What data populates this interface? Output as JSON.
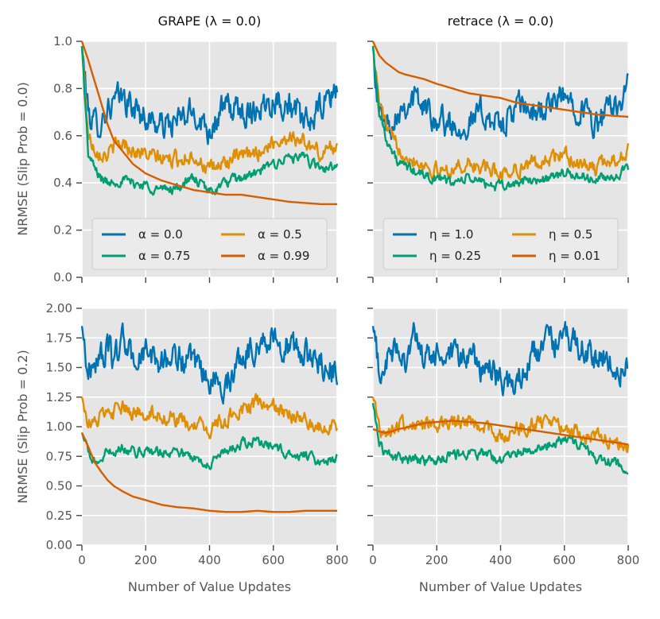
{
  "figure": {
    "row_labels": [
      "NRMSE (Slip Prob = 0.0)",
      "NRMSE (Slip Prob = 0.2)"
    ],
    "xlabel": "Number of Value Updates"
  },
  "colors": {
    "blue": "#0173b2",
    "orange": "#de8f05",
    "green": "#029e73",
    "vermillion": "#d55e00"
  },
  "chart_data": [
    {
      "type": "line",
      "title": "GRAPE (λ = 0.0)",
      "xlabel": "",
      "ylabel": "NRMSE (Slip Prob = 0.0)",
      "xlim": [
        0,
        800
      ],
      "ylim": [
        0,
        1
      ],
      "xticks": [
        0,
        200,
        400,
        600,
        800
      ],
      "yticks": [
        0.0,
        0.2,
        0.4,
        0.6,
        0.8,
        1.0
      ],
      "show_xtick_labels": false,
      "show_ytick_labels": true,
      "grid": true,
      "legend": {
        "position": "lower-center",
        "ncol": 2
      },
      "x": [
        0,
        20,
        40,
        60,
        80,
        100,
        130,
        160,
        200,
        250,
        300,
        350,
        400,
        450,
        500,
        550,
        600,
        650,
        700,
        750,
        800
      ],
      "series": [
        {
          "name": "α = 0.0",
          "color": "blue",
          "values": [
            0.98,
            0.7,
            0.65,
            0.66,
            0.72,
            0.74,
            0.76,
            0.72,
            0.68,
            0.64,
            0.66,
            0.7,
            0.63,
            0.72,
            0.7,
            0.72,
            0.76,
            0.73,
            0.64,
            0.72,
            0.8
          ]
        },
        {
          "name": "α = 0.5",
          "color": "orange",
          "values": [
            0.98,
            0.6,
            0.55,
            0.53,
            0.52,
            0.55,
            0.57,
            0.54,
            0.52,
            0.5,
            0.5,
            0.52,
            0.45,
            0.49,
            0.51,
            0.53,
            0.57,
            0.6,
            0.57,
            0.52,
            0.57
          ]
        },
        {
          "name": "α = 0.75",
          "color": "green",
          "values": [
            0.98,
            0.52,
            0.46,
            0.42,
            0.4,
            0.41,
            0.41,
            0.4,
            0.39,
            0.37,
            0.38,
            0.42,
            0.36,
            0.4,
            0.42,
            0.44,
            0.48,
            0.51,
            0.5,
            0.46,
            0.47
          ]
        },
        {
          "name": "α = 0.99",
          "color": "vermillion",
          "values": [
            1.0,
            0.92,
            0.83,
            0.74,
            0.65,
            0.58,
            0.53,
            0.48,
            0.44,
            0.41,
            0.39,
            0.37,
            0.36,
            0.35,
            0.35,
            0.34,
            0.33,
            0.32,
            0.315,
            0.31,
            0.31
          ]
        }
      ]
    },
    {
      "type": "line",
      "title": "retrace (λ = 0.0)",
      "xlabel": "",
      "ylabel": "",
      "xlim": [
        0,
        800
      ],
      "ylim": [
        0,
        1
      ],
      "xticks": [
        0,
        200,
        400,
        600,
        800
      ],
      "yticks": [
        0.0,
        0.2,
        0.4,
        0.6,
        0.8,
        1.0
      ],
      "show_xtick_labels": false,
      "show_ytick_labels": false,
      "grid": true,
      "legend": {
        "position": "lower-center",
        "ncol": 2
      },
      "x": [
        0,
        20,
        40,
        60,
        80,
        100,
        130,
        160,
        200,
        250,
        300,
        350,
        400,
        450,
        500,
        550,
        600,
        650,
        700,
        750,
        800
      ],
      "series": [
        {
          "name": "η = 1.0",
          "color": "blue",
          "values": [
            0.98,
            0.7,
            0.65,
            0.66,
            0.72,
            0.74,
            0.76,
            0.72,
            0.68,
            0.64,
            0.66,
            0.7,
            0.63,
            0.72,
            0.7,
            0.72,
            0.76,
            0.73,
            0.64,
            0.72,
            0.8
          ]
        },
        {
          "name": "η = 0.5",
          "color": "orange",
          "values": [
            0.98,
            0.74,
            0.65,
            0.58,
            0.55,
            0.53,
            0.5,
            0.48,
            0.45,
            0.46,
            0.48,
            0.46,
            0.44,
            0.46,
            0.48,
            0.5,
            0.52,
            0.48,
            0.46,
            0.5,
            0.53
          ]
        },
        {
          "name": "η = 0.25",
          "color": "green",
          "values": [
            0.98,
            0.7,
            0.6,
            0.53,
            0.48,
            0.47,
            0.45,
            0.43,
            0.42,
            0.4,
            0.42,
            0.4,
            0.38,
            0.4,
            0.41,
            0.42,
            0.44,
            0.43,
            0.41,
            0.43,
            0.45
          ]
        },
        {
          "name": "η = 0.01",
          "color": "vermillion",
          "values": [
            1.0,
            0.94,
            0.91,
            0.89,
            0.87,
            0.86,
            0.85,
            0.84,
            0.82,
            0.8,
            0.78,
            0.77,
            0.76,
            0.74,
            0.73,
            0.72,
            0.71,
            0.7,
            0.69,
            0.685,
            0.68
          ]
        }
      ]
    },
    {
      "type": "line",
      "title": "",
      "xlabel": "Number of Value Updates",
      "ylabel": "NRMSE (Slip Prob = 0.2)",
      "xlim": [
        0,
        800
      ],
      "ylim": [
        0,
        2
      ],
      "xticks": [
        0,
        200,
        400,
        600,
        800
      ],
      "yticks": [
        0.0,
        0.25,
        0.5,
        0.75,
        1.0,
        1.25,
        1.5,
        1.75,
        2.0
      ],
      "show_xtick_labels": true,
      "show_ytick_labels": true,
      "grid": true,
      "legend": null,
      "x": [
        0,
        20,
        40,
        60,
        80,
        100,
        130,
        160,
        200,
        250,
        300,
        350,
        400,
        450,
        500,
        550,
        600,
        650,
        700,
        750,
        800
      ],
      "series": [
        {
          "name": "α = 0.0",
          "color": "blue",
          "values": [
            1.85,
            1.45,
            1.55,
            1.6,
            1.65,
            1.58,
            1.75,
            1.55,
            1.62,
            1.55,
            1.6,
            1.5,
            1.4,
            1.35,
            1.6,
            1.7,
            1.75,
            1.68,
            1.6,
            1.55,
            1.45
          ]
        },
        {
          "name": "α = 0.5",
          "color": "orange",
          "values": [
            1.25,
            1.05,
            1.02,
            1.1,
            1.08,
            1.12,
            1.15,
            1.1,
            1.13,
            1.1,
            1.05,
            1.0,
            0.98,
            1.05,
            1.15,
            1.2,
            1.15,
            1.1,
            1.05,
            1.0,
            1.02
          ]
        },
        {
          "name": "α = 0.75",
          "color": "green",
          "values": [
            0.95,
            0.78,
            0.7,
            0.72,
            0.78,
            0.8,
            0.82,
            0.78,
            0.8,
            0.78,
            0.8,
            0.72,
            0.7,
            0.78,
            0.85,
            0.88,
            0.82,
            0.78,
            0.75,
            0.72,
            0.74
          ]
        },
        {
          "name": "α = 0.99",
          "color": "vermillion",
          "values": [
            0.95,
            0.83,
            0.7,
            0.62,
            0.55,
            0.5,
            0.45,
            0.41,
            0.38,
            0.34,
            0.32,
            0.31,
            0.29,
            0.28,
            0.28,
            0.29,
            0.28,
            0.28,
            0.29,
            0.29,
            0.29
          ]
        }
      ]
    },
    {
      "type": "line",
      "title": "",
      "xlabel": "Number of Value Updates",
      "ylabel": "",
      "xlim": [
        0,
        800
      ],
      "ylim": [
        0,
        2
      ],
      "xticks": [
        0,
        200,
        400,
        600,
        800
      ],
      "yticks": [
        0.0,
        0.25,
        0.5,
        0.75,
        1.0,
        1.25,
        1.5,
        1.75,
        2.0
      ],
      "show_xtick_labels": true,
      "show_ytick_labels": false,
      "grid": true,
      "legend": null,
      "x": [
        0,
        20,
        40,
        60,
        80,
        100,
        130,
        160,
        200,
        250,
        300,
        350,
        400,
        450,
        500,
        550,
        600,
        650,
        700,
        750,
        800
      ],
      "series": [
        {
          "name": "η = 1.0",
          "color": "blue",
          "values": [
            1.85,
            1.45,
            1.55,
            1.6,
            1.65,
            1.58,
            1.75,
            1.55,
            1.62,
            1.55,
            1.6,
            1.5,
            1.4,
            1.35,
            1.6,
            1.7,
            1.75,
            1.68,
            1.6,
            1.55,
            1.45
          ]
        },
        {
          "name": "η = 0.5",
          "color": "orange",
          "values": [
            1.25,
            1.0,
            0.95,
            0.98,
            1.0,
            1.02,
            1.03,
            1.0,
            1.02,
            1.0,
            1.05,
            1.0,
            0.92,
            0.96,
            1.02,
            1.08,
            1.0,
            0.95,
            0.92,
            0.88,
            0.84
          ]
        },
        {
          "name": "η = 0.25",
          "color": "green",
          "values": [
            1.2,
            0.85,
            0.78,
            0.75,
            0.73,
            0.72,
            0.73,
            0.7,
            0.72,
            0.75,
            0.78,
            0.76,
            0.72,
            0.78,
            0.82,
            0.86,
            0.9,
            0.84,
            0.74,
            0.7,
            0.66
          ]
        },
        {
          "name": "η = 0.01",
          "color": "vermillion",
          "values": [
            0.98,
            0.96,
            0.95,
            0.96,
            0.98,
            0.99,
            1.01,
            1.03,
            1.04,
            1.05,
            1.04,
            1.03,
            1.01,
            0.99,
            0.97,
            0.95,
            0.93,
            0.91,
            0.89,
            0.87,
            0.85
          ]
        }
      ]
    }
  ]
}
